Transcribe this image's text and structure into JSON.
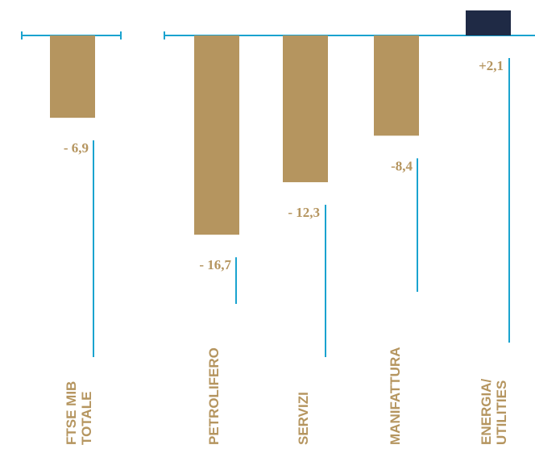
{
  "chart_data": {
    "type": "bar",
    "categories": [
      {
        "lines": [
          "FTSE MIB",
          "TOTALE"
        ]
      },
      {
        "lines": [
          "PETROLIFERO"
        ]
      },
      {
        "lines": [
          "SERVIZI"
        ]
      },
      {
        "lines": [
          "MANIFATTURA"
        ]
      },
      {
        "lines": [
          "ENERGIA/",
          "UTILITIES"
        ]
      }
    ],
    "values": [
      -6.9,
      -16.7,
      -12.3,
      -8.4,
      2.1
    ],
    "value_labels": [
      "- 6,9",
      "- 16,7",
      "- 12,3",
      "-8,4",
      "+2,1"
    ],
    "ylim": [
      -25,
      3
    ],
    "grid": false,
    "legend": "none"
  },
  "colors": {
    "bar_negative": "#b5955f",
    "bar_positive": "#1f2a45",
    "axis": "#1aa3cf",
    "label_text": "#b5955f"
  }
}
